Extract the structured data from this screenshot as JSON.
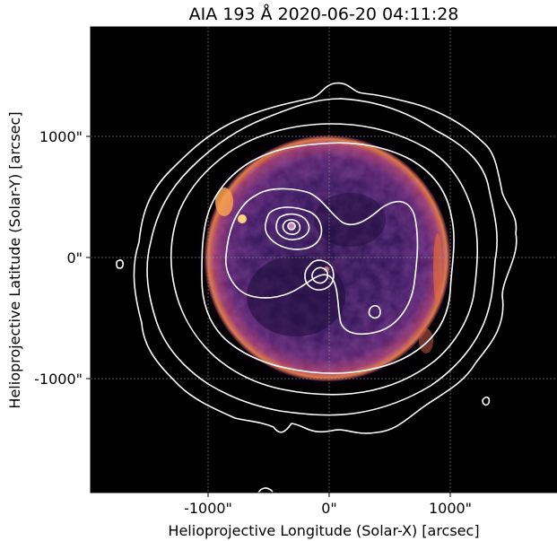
{
  "figure": {
    "title": "AIA 193 Å 2020-06-20 04:11:28",
    "xlabel": "Helioprojective Longitude (Solar-X) [arcsec]",
    "ylabel": "Helioprojective Latitude (Solar-Y) [arcsec]",
    "x_ticks": [
      {
        "value": -1000,
        "label": "-1000\""
      },
      {
        "value": 0,
        "label": "0\""
      },
      {
        "value": 1000,
        "label": "1000\""
      }
    ],
    "y_ticks": [
      {
        "value": 1000,
        "label": "1000\""
      },
      {
        "value": 0,
        "label": "0\""
      },
      {
        "value": -1000,
        "label": "-1000\""
      }
    ],
    "colors": {
      "background": "#000000",
      "contour": "#ffffff",
      "disk_center": "#3a1a5a",
      "limb": "#e07a3a",
      "grid": "#9a9a9a"
    },
    "grid": true
  }
}
